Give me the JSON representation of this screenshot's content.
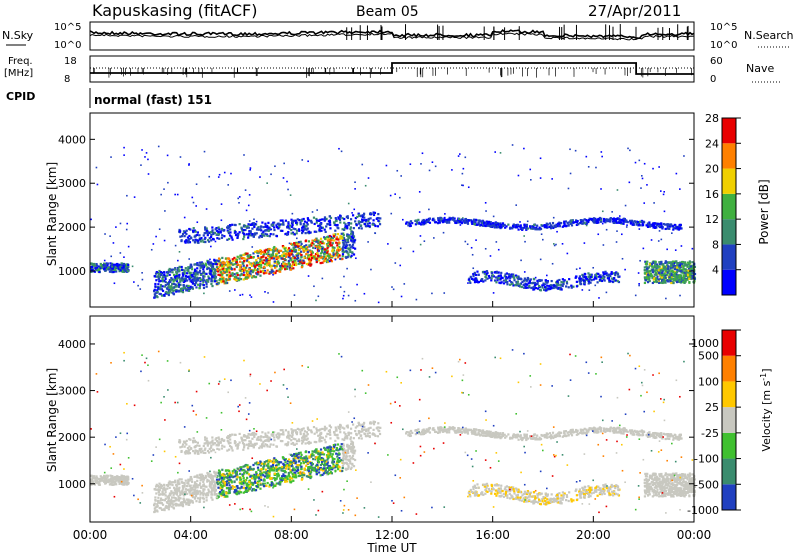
{
  "header": {
    "station": "Kapuskasing (fitACF)",
    "beam": "Beam 05",
    "date": "27/Apr/2011"
  },
  "nsky_panel": {
    "left_label": "N.Sky",
    "right_label": "N.Search",
    "ticks_left": [
      "10^5",
      "10^0"
    ],
    "ticks_right": [
      "10^5",
      "10^0"
    ]
  },
  "freq_panel": {
    "left_label_top": "Freq.",
    "left_label_unit": "[MHz]",
    "right_label": "Nave",
    "ticks_left": [
      "18",
      "8"
    ],
    "ticks_right": [
      "60",
      "0"
    ]
  },
  "cpid": {
    "label": "CPID",
    "value": "normal (fast) 151"
  },
  "x_axis": {
    "title": "Time UT",
    "ticks": [
      "00:00",
      "04:00",
      "08:00",
      "12:00",
      "16:00",
      "20:00",
      "00:00"
    ]
  },
  "colors": {
    "frame": "#000000",
    "velocity_gray": "#c8c8c0"
  },
  "chart_data": [
    {
      "type": "heatmap",
      "title": "",
      "ylabel": "Slant Range [km]",
      "xlabel": "",
      "ylim": [
        180,
        4600
      ],
      "yticks": [
        "1000",
        "2000",
        "3000",
        "4000"
      ],
      "colorbar": {
        "label": "Power [dB]",
        "ticks": [
          "4",
          "8",
          "12",
          "16",
          "20",
          "24",
          "28"
        ],
        "colors": [
          "#0000ff",
          "#2040c0",
          "#3a8c6e",
          "#40b040",
          "#f0d000",
          "#ff8000",
          "#e80000"
        ]
      }
    },
    {
      "type": "heatmap",
      "title": "",
      "ylabel": "Slant Range [km]",
      "xlabel": "Time UT",
      "ylim": [
        180,
        4600
      ],
      "yticks": [
        "1000",
        "2000",
        "3000",
        "4000"
      ],
      "colorbar": {
        "label": "Velocity [m s^-1]",
        "ticks": [
          "1000",
          "500",
          "100",
          "25",
          "-25",
          "-100",
          "-500",
          "-1000"
        ],
        "colors": [
          "#2040c0",
          "#3a8c6e",
          "#40c030",
          "#c8c8c0",
          "#ffc800",
          "#ff8000",
          "#e80000"
        ]
      }
    }
  ]
}
